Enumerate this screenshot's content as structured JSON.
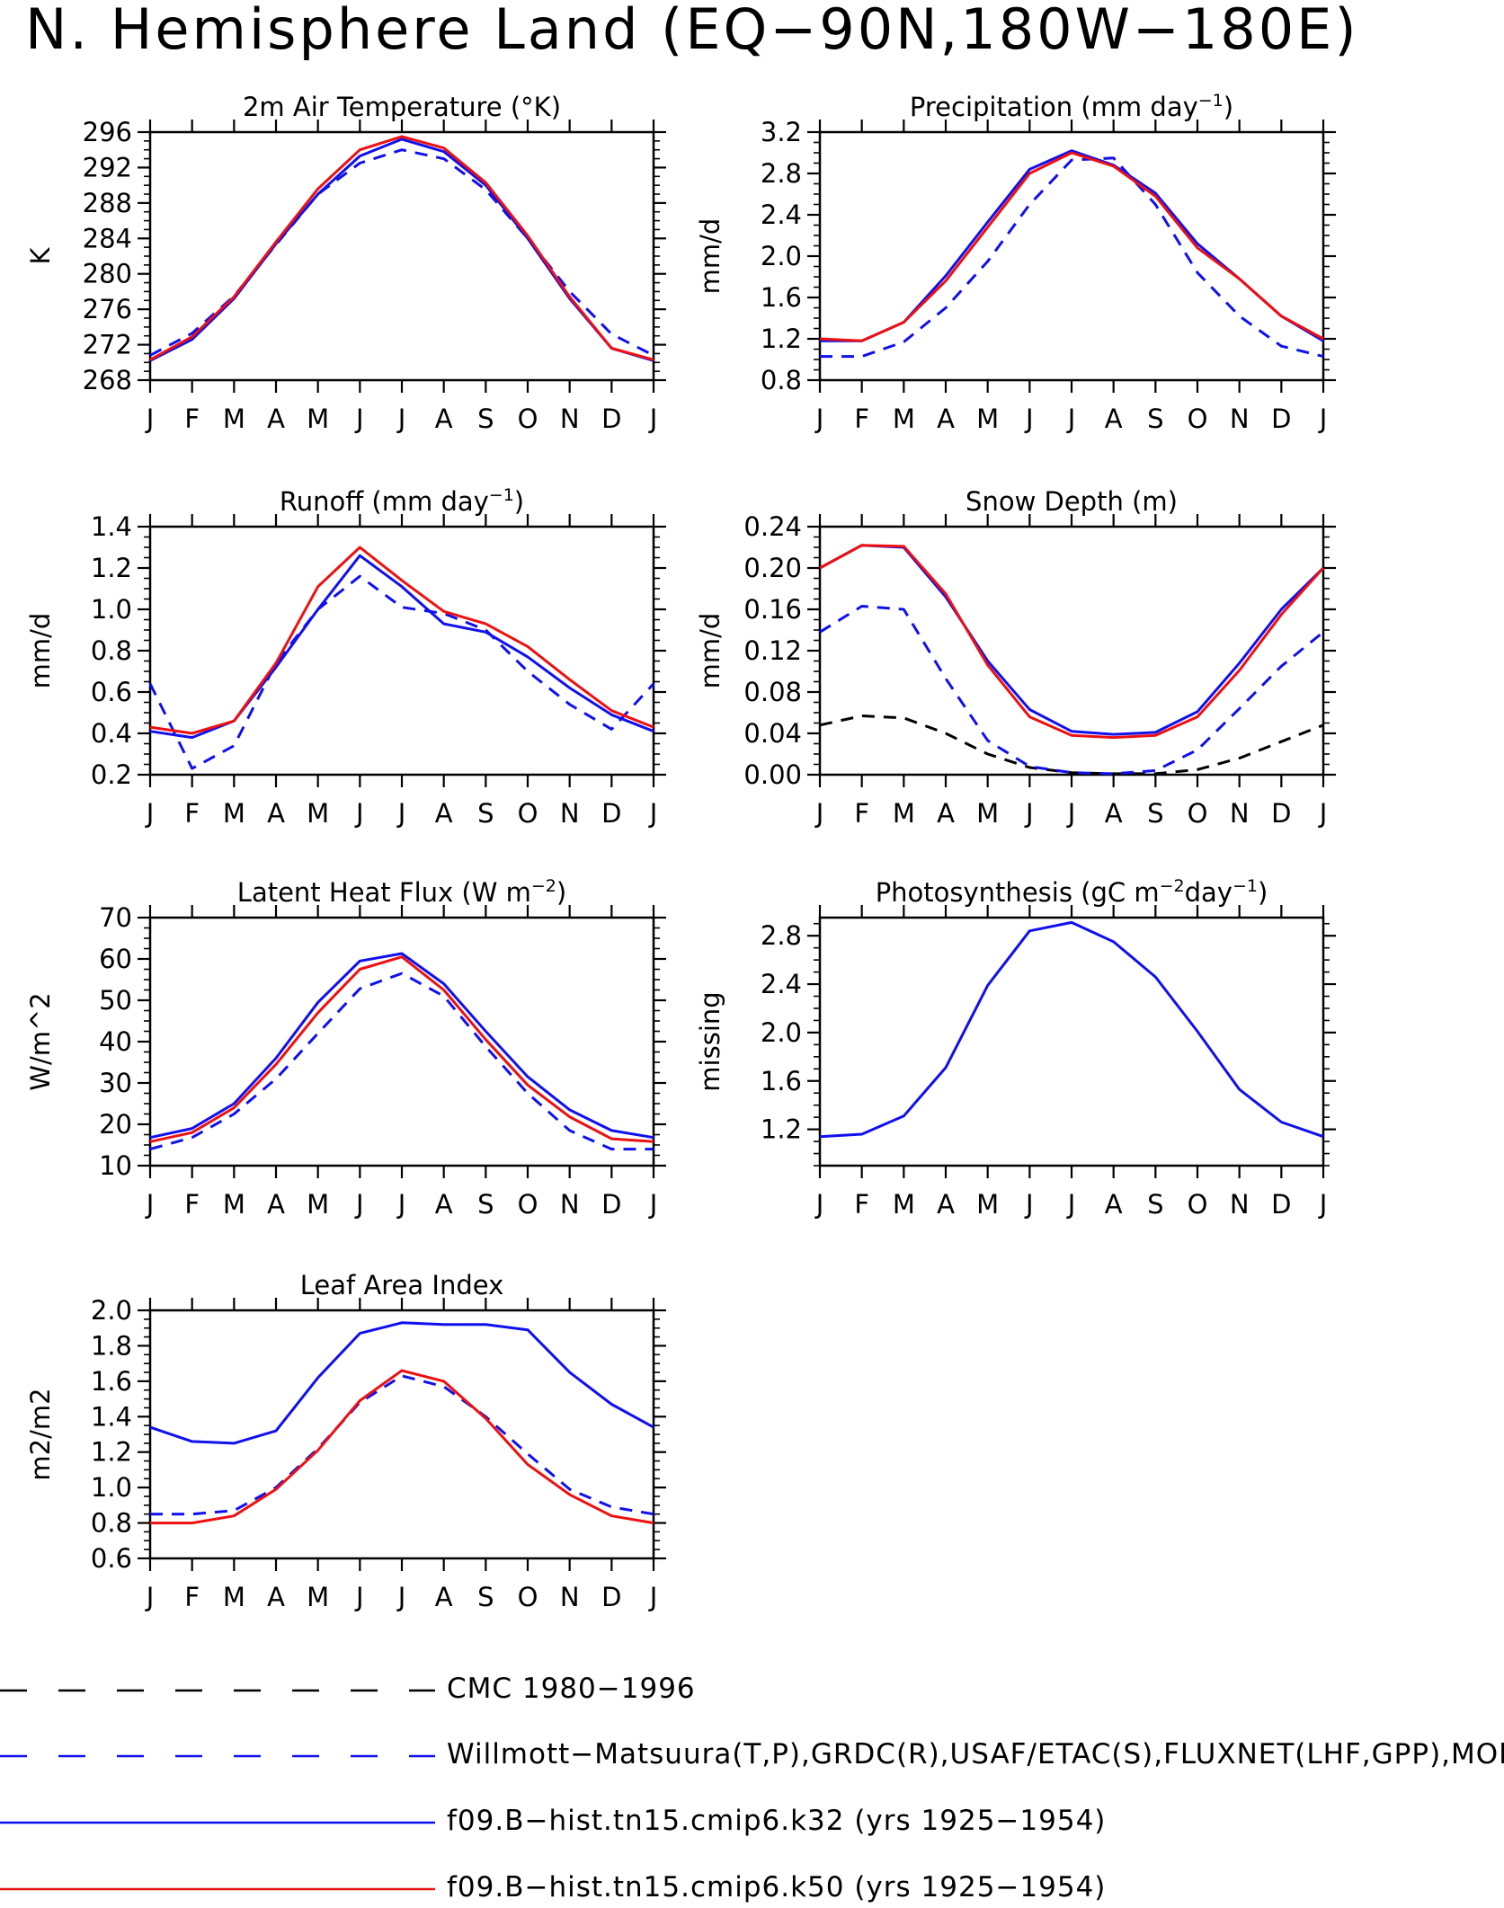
{
  "title": "N. Hemisphere Land (EQ−90N,180W−180E)",
  "colors": {
    "model_k32": "#1010ee",
    "model_k50": "#ee1010",
    "obs": "#1010ee",
    "cmc": "#000000"
  },
  "months": [
    "J",
    "F",
    "M",
    "A",
    "M",
    "J",
    "J",
    "A",
    "S",
    "O",
    "N",
    "D",
    "J"
  ],
  "chart_data": [
    {
      "type": "line",
      "title": "2m Air Temperature (°K)",
      "ylabel": "K",
      "ylim": [
        268,
        296
      ],
      "yticks": [
        "268",
        "272",
        "276",
        "280",
        "284",
        "288",
        "292",
        "296"
      ],
      "grid": false,
      "series": [
        {
          "name": "Willmott−Matsuura(T,P),GRDC(R),USAF/ETAC(S),FLUXNET(LHF,GPP),MODIS(L",
          "style": "obs",
          "values": [
            270.8,
            273.3,
            277.5,
            283.3,
            289.0,
            292.5,
            294.0,
            293.0,
            289.5,
            284.0,
            278.0,
            273.2,
            270.8
          ]
        },
        {
          "name": "f09.B−hist.tn15.cmip6.k32 (yrs 1925−1954)",
          "style": "k32",
          "values": [
            270.2,
            272.6,
            277.2,
            283.4,
            289.0,
            293.3,
            295.2,
            293.8,
            290.0,
            284.0,
            277.2,
            271.6,
            270.2
          ]
        },
        {
          "name": "f09.B−hist.tn15.cmip6.k50 (yrs 1925−1954)",
          "style": "k50",
          "values": [
            270.3,
            272.9,
            277.4,
            283.6,
            289.6,
            294.0,
            295.5,
            294.2,
            290.3,
            284.3,
            277.4,
            271.6,
            270.3
          ]
        }
      ]
    },
    {
      "type": "line",
      "title": "Precipitation (mm day⁻¹)",
      "ylabel": "mm/d",
      "ylim": [
        0.8,
        3.2
      ],
      "yticks": [
        "0.8",
        "1.2",
        "1.6",
        "2.0",
        "2.4",
        "2.8",
        "3.2"
      ],
      "grid": false,
      "series": [
        {
          "name": "Willmott−Matsuura(T,P),GRDC(R),USAF/ETAC(S),FLUXNET(LHF,GPP),MODIS(L",
          "style": "obs",
          "values": [
            1.03,
            1.03,
            1.17,
            1.5,
            1.95,
            2.5,
            2.93,
            2.95,
            2.5,
            1.84,
            1.42,
            1.13,
            1.03
          ]
        },
        {
          "name": "f09.B−hist.tn15.cmip6.k32 (yrs 1925−1954)",
          "style": "k32",
          "values": [
            1.18,
            1.18,
            1.36,
            1.81,
            2.33,
            2.84,
            3.02,
            2.88,
            2.61,
            2.12,
            1.78,
            1.42,
            1.18
          ]
        },
        {
          "name": "f09.B−hist.tn15.cmip6.k50 (yrs 1925−1954)",
          "style": "k50",
          "values": [
            1.2,
            1.18,
            1.36,
            1.76,
            2.28,
            2.8,
            3.0,
            2.87,
            2.58,
            2.08,
            1.78,
            1.42,
            1.2
          ]
        }
      ]
    },
    {
      "type": "line",
      "title": "Runoff (mm day⁻¹)",
      "ylabel": "mm/d",
      "ylim": [
        0.2,
        1.4
      ],
      "yticks": [
        "0.2",
        "0.4",
        "0.6",
        "0.8",
        "1.0",
        "1.2",
        "1.4"
      ],
      "grid": false,
      "series": [
        {
          "name": "Willmott−Matsuura(T,P),GRDC(R),USAF/ETAC(S),FLUXNET(LHF,GPP),MODIS(L",
          "style": "obs",
          "values": [
            0.64,
            0.23,
            0.34,
            0.74,
            1.0,
            1.16,
            1.01,
            0.98,
            0.9,
            0.7,
            0.54,
            0.42,
            0.64
          ]
        },
        {
          "name": "f09.B−hist.tn15.cmip6.k32 (yrs 1925−1954)",
          "style": "k32",
          "values": [
            0.41,
            0.38,
            0.46,
            0.72,
            1.0,
            1.26,
            1.11,
            0.93,
            0.89,
            0.77,
            0.62,
            0.49,
            0.41
          ]
        },
        {
          "name": "f09.B−hist.tn15.cmip6.k50 (yrs 1925−1954)",
          "style": "k50",
          "values": [
            0.43,
            0.4,
            0.46,
            0.74,
            1.11,
            1.3,
            1.14,
            0.99,
            0.93,
            0.82,
            0.66,
            0.51,
            0.43
          ]
        }
      ]
    },
    {
      "type": "line",
      "title": "Snow Depth (m)",
      "ylabel": "mm/d",
      "ylim": [
        0.0,
        0.24
      ],
      "yticks": [
        "0.00",
        "0.04",
        "0.08",
        "0.12",
        "0.16",
        "0.20",
        "0.24"
      ],
      "grid": false,
      "series": [
        {
          "name": "CMC 1980−1996",
          "style": "cmc",
          "values": [
            0.048,
            0.057,
            0.055,
            0.04,
            0.02,
            0.007,
            0.002,
            0.001,
            0.001,
            0.005,
            0.016,
            0.032,
            0.048
          ]
        },
        {
          "name": "Willmott−Matsuura(T,P),GRDC(R),USAF/ETAC(S),FLUXNET(LHF,GPP),MODIS(L",
          "style": "obs",
          "values": [
            0.138,
            0.163,
            0.16,
            0.093,
            0.033,
            0.008,
            0.002,
            0.001,
            0.004,
            0.024,
            0.064,
            0.105,
            0.138
          ]
        },
        {
          "name": "f09.B−hist.tn15.cmip6.k32 (yrs 1925−1954)",
          "style": "k32",
          "values": [
            0.2,
            0.222,
            0.22,
            0.172,
            0.11,
            0.063,
            0.042,
            0.039,
            0.041,
            0.061,
            0.108,
            0.16,
            0.2
          ]
        },
        {
          "name": "f09.B−hist.tn15.cmip6.k50 (yrs 1925−1954)",
          "style": "k50",
          "values": [
            0.2,
            0.222,
            0.221,
            0.175,
            0.106,
            0.056,
            0.038,
            0.036,
            0.038,
            0.056,
            0.101,
            0.155,
            0.2
          ]
        }
      ]
    },
    {
      "type": "line",
      "title": "Latent Heat Flux (W m⁻²)",
      "ylabel": "W/m^2",
      "ylim": [
        10,
        70
      ],
      "yticks": [
        "10",
        "20",
        "30",
        "40",
        "50",
        "60",
        "70"
      ],
      "grid": false,
      "series": [
        {
          "name": "Willmott−Matsuura(T,P),GRDC(R),USAF/ETAC(S),FLUXNET(LHF,GPP),MODIS(L",
          "style": "obs",
          "values": [
            14.0,
            16.8,
            22.5,
            31.0,
            42.0,
            52.8,
            56.5,
            51.0,
            38.8,
            27.5,
            18.5,
            14.0,
            14.0
          ]
        },
        {
          "name": "f09.B−hist.tn15.cmip6.k32 (yrs 1925−1954)",
          "style": "k32",
          "values": [
            16.8,
            19.0,
            25.0,
            36.0,
            49.5,
            59.5,
            61.3,
            54.0,
            42.5,
            31.5,
            23.5,
            18.5,
            16.8
          ]
        },
        {
          "name": "f09.B−hist.tn15.cmip6.k50 (yrs 1925−1954)",
          "style": "k50",
          "values": [
            15.8,
            18.0,
            24.0,
            34.5,
            47.0,
            57.5,
            60.5,
            52.5,
            40.5,
            29.5,
            21.8,
            16.5,
            15.8
          ]
        }
      ]
    },
    {
      "type": "line",
      "title": "Photosynthesis (gC m⁻²day⁻¹)",
      "ylabel": "missing",
      "ylim": [
        0.9,
        2.95
      ],
      "yticks": [
        "1.2",
        "1.6",
        "2.0",
        "2.4",
        "2.8"
      ],
      "yticks_values": [
        1.2,
        1.6,
        2.0,
        2.4,
        2.8
      ],
      "grid": false,
      "series": [
        {
          "name": "f09.B−hist.tn15.cmip6.k32 (yrs 1925−1954)",
          "style": "k32",
          "values": [
            1.14,
            1.16,
            1.31,
            1.71,
            2.39,
            2.84,
            2.91,
            2.75,
            2.46,
            2.01,
            1.53,
            1.26,
            1.14
          ]
        }
      ]
    },
    {
      "type": "line",
      "title": "Leaf Area Index",
      "ylabel": "m2/m2",
      "ylim": [
        0.6,
        2.0
      ],
      "yticks": [
        "0.6",
        "0.8",
        "1.0",
        "1.2",
        "1.4",
        "1.6",
        "1.8",
        "2.0"
      ],
      "grid": false,
      "series": [
        {
          "name": "Willmott−Matsuura(T,P),GRDC(R),USAF/ETAC(S),FLUXNET(LHF,GPP),MODIS(L",
          "style": "obs",
          "values": [
            0.85,
            0.85,
            0.87,
            1.0,
            1.22,
            1.48,
            1.63,
            1.57,
            1.4,
            1.19,
            0.99,
            0.89,
            0.85
          ]
        },
        {
          "name": "f09.B−hist.tn15.cmip6.k32 (yrs 1925−1954)",
          "style": "k32",
          "values": [
            1.34,
            1.26,
            1.25,
            1.32,
            1.62,
            1.87,
            1.93,
            1.92,
            1.92,
            1.89,
            1.65,
            1.47,
            1.34
          ]
        },
        {
          "name": "f09.B−hist.tn15.cmip6.k50 (yrs 1925−1954)",
          "style": "k50",
          "values": [
            0.8,
            0.8,
            0.84,
            0.99,
            1.21,
            1.49,
            1.66,
            1.6,
            1.39,
            1.13,
            0.96,
            0.84,
            0.8
          ]
        }
      ]
    }
  ],
  "legend": [
    {
      "style": "cmc",
      "label": "CMC 1980−1996"
    },
    {
      "style": "obs",
      "label": "Willmott−Matsuura(T,P),GRDC(R),USAF/ETAC(S),FLUXNET(LHF,GPP),MODIS(L"
    },
    {
      "style": "k32",
      "label": "f09.B−hist.tn15.cmip6.k32 (yrs 1925−1954)"
    },
    {
      "style": "k50",
      "label": "f09.B−hist.tn15.cmip6.k50 (yrs 1925−1954)"
    }
  ]
}
